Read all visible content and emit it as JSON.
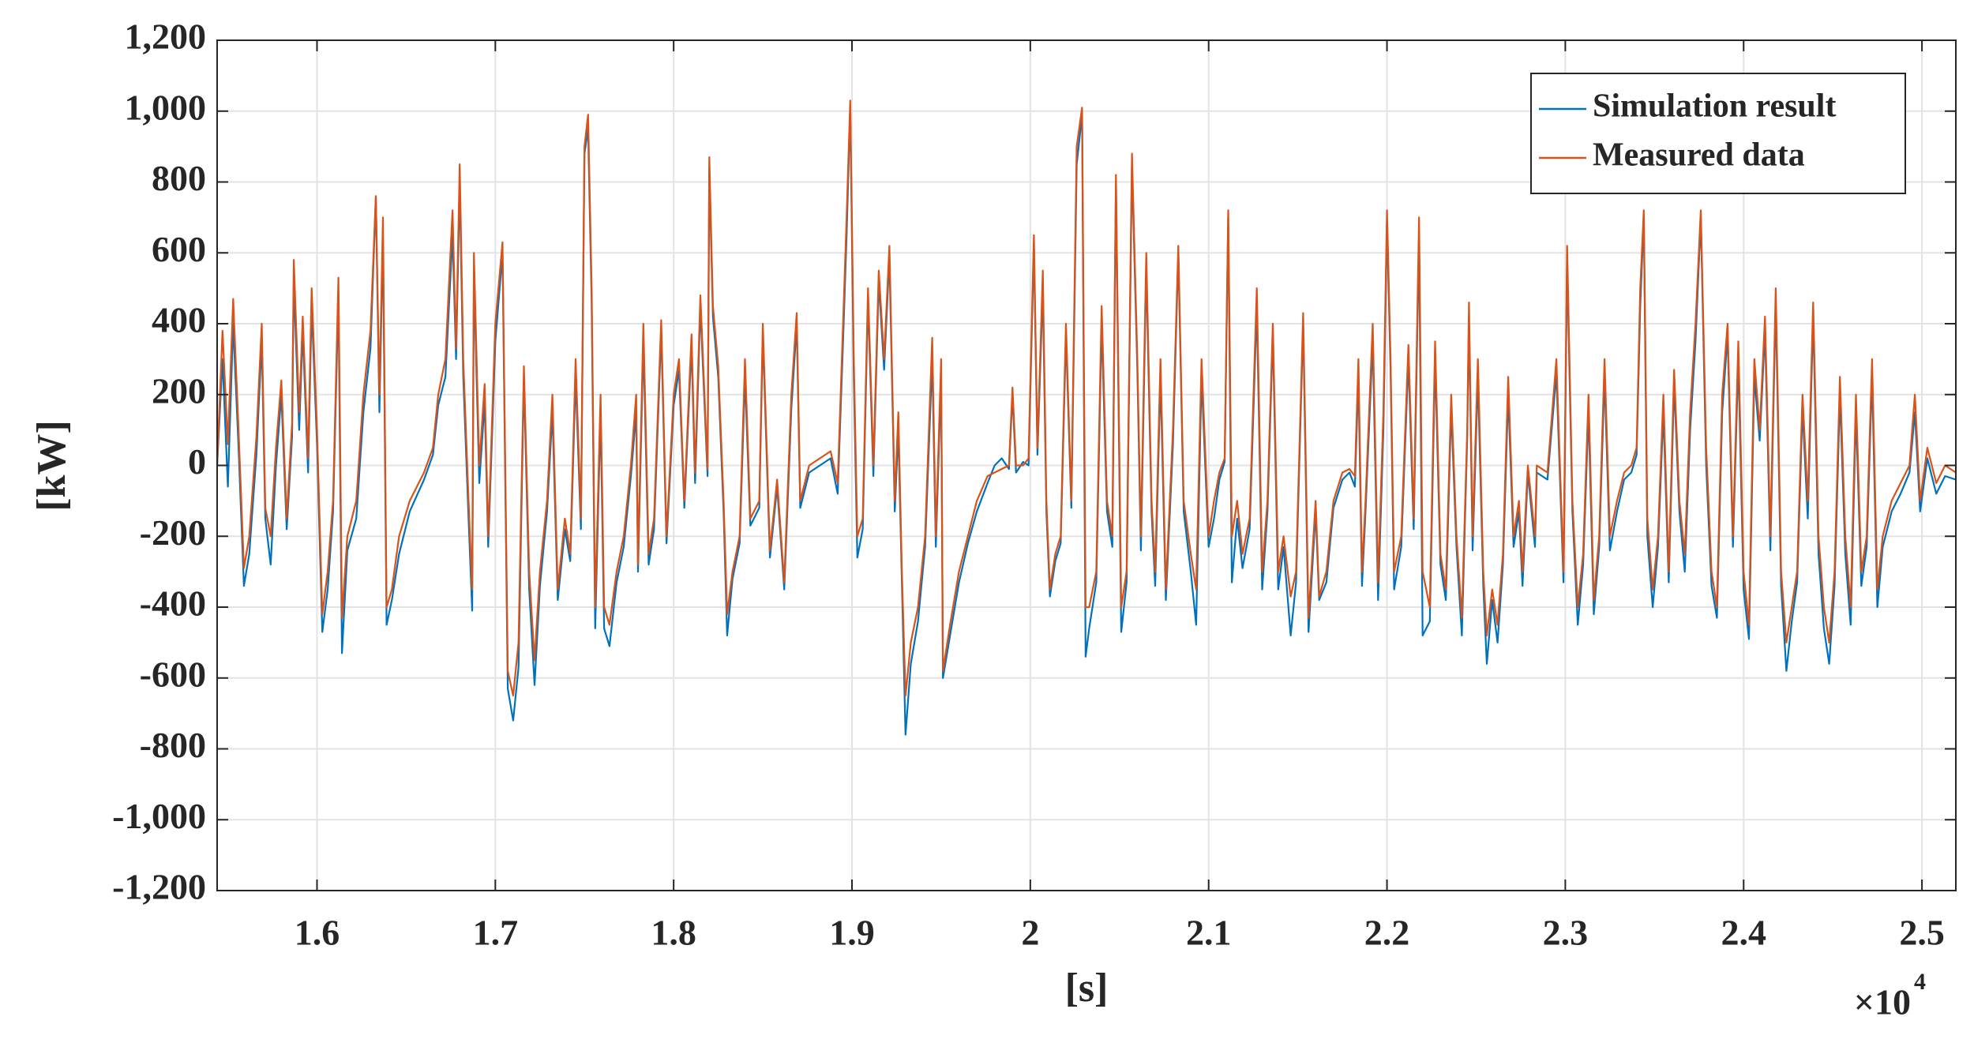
{
  "chart_data": {
    "type": "line",
    "xlabel": "[s]",
    "ylabel": "[kW]",
    "x_multiplier": "×10",
    "x_multiplier_exponent": "4",
    "xlim": [
      15440,
      25190
    ],
    "ylim": [
      -1200,
      1200
    ],
    "xticks": [
      {
        "value": 16000,
        "label": "1.6"
      },
      {
        "value": 17000,
        "label": "1.7"
      },
      {
        "value": 18000,
        "label": "1.8"
      },
      {
        "value": 19000,
        "label": "1.9"
      },
      {
        "value": 20000,
        "label": "2"
      },
      {
        "value": 21000,
        "label": "2.1"
      },
      {
        "value": 22000,
        "label": "2.2"
      },
      {
        "value": 23000,
        "label": "2.3"
      },
      {
        "value": 24000,
        "label": "2.4"
      },
      {
        "value": 25000,
        "label": "2.5"
      }
    ],
    "yticks": [
      {
        "value": -1200,
        "label": "-1,200"
      },
      {
        "value": -1000,
        "label": "-1,000"
      },
      -800,
      -600,
      -400,
      -200,
      0,
      200,
      400,
      600,
      800,
      {
        "value": 1000,
        "label": "1,000"
      },
      {
        "value": 1200,
        "label": "1,200"
      }
    ],
    "grid": true,
    "legend": "northeast",
    "x": [
      15440,
      15470,
      15500,
      15530,
      15560,
      15590,
      15620,
      15660,
      15690,
      15710,
      15740,
      15770,
      15800,
      15830,
      15860,
      15870,
      15900,
      15920,
      15950,
      15970,
      16000,
      16030,
      16060,
      16090,
      16120,
      16140,
      16170,
      16220,
      16260,
      16300,
      16330,
      16350,
      16370,
      16390,
      16420,
      16460,
      16520,
      16600,
      16650,
      16680,
      16720,
      16760,
      16780,
      16800,
      16820,
      16850,
      16870,
      16880,
      16910,
      16940,
      16960,
      17000,
      17040,
      17070,
      17100,
      17130,
      17160,
      17190,
      17220,
      17250,
      17290,
      17320,
      17350,
      17390,
      17420,
      17450,
      17480,
      17500,
      17520,
      17540,
      17560,
      17590,
      17610,
      17640,
      17680,
      17720,
      17760,
      17790,
      17800,
      17830,
      17860,
      17890,
      17930,
      17960,
      18000,
      18030,
      18060,
      18100,
      18120,
      18150,
      18190,
      18200,
      18220,
      18250,
      18280,
      18300,
      18330,
      18370,
      18400,
      18430,
      18480,
      18500,
      18540,
      18580,
      18620,
      18660,
      18690,
      18710,
      18760,
      18820,
      18880,
      18920,
      18950,
      18970,
      18990,
      19010,
      19030,
      19060,
      19090,
      19120,
      19150,
      19180,
      19210,
      19240,
      19260,
      19280,
      19300,
      19330,
      19370,
      19410,
      19450,
      19470,
      19500,
      19510,
      19550,
      19600,
      19650,
      19700,
      19760,
      19800,
      19840,
      19880,
      19900,
      19920,
      19960,
      19990,
      20020,
      20040,
      20070,
      20090,
      20110,
      20140,
      20170,
      20200,
      20230,
      20260,
      20290,
      20310,
      20330,
      20370,
      20400,
      20430,
      20460,
      20480,
      20510,
      20540,
      20570,
      20600,
      20620,
      20650,
      20680,
      20700,
      20730,
      20760,
      20800,
      20830,
      20860,
      20900,
      20930,
      20960,
      21000,
      21030,
      21060,
      21090,
      21110,
      21130,
      21160,
      21190,
      21230,
      21270,
      21300,
      21330,
      21360,
      21390,
      21420,
      21460,
      21490,
      21530,
      21560,
      21600,
      21620,
      21660,
      21700,
      21750,
      21790,
      21820,
      21840,
      21860,
      21880,
      21920,
      21950,
      21980,
      22000,
      22020,
      22040,
      22080,
      22120,
      22150,
      22180,
      22200,
      22240,
      22270,
      22300,
      22330,
      22360,
      22390,
      22420,
      22450,
      22460,
      22480,
      22510,
      22540,
      22560,
      22590,
      22620,
      22650,
      22680,
      22710,
      22740,
      22760,
      22790,
      22830,
      22840,
      22870,
      22900,
      22950,
      22990,
      23010,
      23040,
      23070,
      23100,
      23130,
      23160,
      23190,
      23220,
      23250,
      23290,
      23330,
      23370,
      23400,
      23420,
      23440,
      23460,
      23490,
      23520,
      23550,
      23580,
      23610,
      23640,
      23670,
      23700,
      23730,
      23760,
      23790,
      23820,
      23850,
      23880,
      23910,
      23940,
      23970,
      24000,
      24030,
      24060,
      24090,
      24120,
      24150,
      24180,
      24210,
      24240,
      24270,
      24300,
      24330,
      24360,
      24390,
      24420,
      24450,
      24480,
      24510,
      24540,
      24570,
      24600,
      24630,
      24660,
      24690,
      24720,
      24750,
      24780,
      24830,
      24880,
      24930,
      24960,
      24990,
      25030,
      25080,
      25130,
      25190
    ],
    "series": [
      {
        "name": "Simulation result",
        "color": "#0072bd",
        "values": [
          0,
          300,
          -60,
          400,
          50,
          -340,
          -250,
          30,
          350,
          -150,
          -280,
          0,
          200,
          -180,
          80,
          520,
          100,
          380,
          -20,
          450,
          60,
          -470,
          -350,
          -130,
          480,
          -530,
          -240,
          -150,
          150,
          330,
          760,
          150,
          650,
          -450,
          -380,
          -250,
          -130,
          -40,
          30,
          170,
          250,
          650,
          300,
          800,
          250,
          -150,
          -410,
          550,
          -50,
          180,
          -230,
          350,
          600,
          -630,
          -720,
          -570,
          250,
          -350,
          -620,
          -340,
          -130,
          150,
          -380,
          -180,
          -270,
          250,
          -180,
          880,
          950,
          460,
          -460,
          150,
          -460,
          -510,
          -330,
          -230,
          -30,
          150,
          -300,
          350,
          -280,
          -180,
          380,
          -220,
          170,
          270,
          -120,
          340,
          -50,
          450,
          -30,
          840,
          420,
          250,
          -130,
          -480,
          -320,
          -220,
          250,
          -170,
          -120,
          370,
          -260,
          -60,
          -350,
          160,
          400,
          -120,
          -20,
          0,
          20,
          -80,
          350,
          650,
          1010,
          250,
          -260,
          -180,
          470,
          -30,
          520,
          270,
          590,
          -130,
          100,
          -330,
          -760,
          -560,
          -440,
          -230,
          300,
          -230,
          250,
          -600,
          -480,
          -330,
          -220,
          -130,
          -50,
          0,
          20,
          -10,
          200,
          -20,
          10,
          0,
          620,
          30,
          500,
          -130,
          -370,
          -270,
          -220,
          370,
          -120,
          850,
          990,
          -540,
          -460,
          -330,
          400,
          -130,
          -230,
          800,
          -470,
          -330,
          850,
          270,
          -240,
          560,
          -130,
          -340,
          250,
          -380,
          60,
          600,
          -130,
          -300,
          -450,
          250,
          -230,
          -150,
          -40,
          10,
          700,
          -330,
          -150,
          -290,
          -180,
          450,
          -350,
          -130,
          370,
          -350,
          -230,
          -480,
          -330,
          400,
          -470,
          -130,
          -380,
          -330,
          -120,
          -40,
          -20,
          -60,
          250,
          -340,
          -130,
          350,
          -380,
          100,
          690,
          270,
          -350,
          -230,
          300,
          -180,
          650,
          -480,
          -440,
          300,
          -280,
          -380,
          160,
          -230,
          -480,
          80,
          420,
          -240,
          250,
          -340,
          -560,
          -380,
          -500,
          -280,
          200,
          -230,
          -130,
          -340,
          -20,
          -230,
          -20,
          -30,
          -40,
          260,
          -330,
          580,
          -130,
          -450,
          -280,
          150,
          -420,
          -230,
          250,
          -240,
          -130,
          -40,
          -20,
          30,
          450,
          700,
          -200,
          -400,
          -230,
          150,
          -330,
          230,
          -130,
          -300,
          100,
          350,
          700,
          0,
          -340,
          -430,
          150,
          370,
          -230,
          300,
          -350,
          -490,
          250,
          70,
          380,
          -240,
          460,
          -340,
          -580,
          -440,
          -330,
          160,
          -150,
          420,
          -250,
          -460,
          -560,
          -340,
          200,
          -250,
          -450,
          150,
          -340,
          -230,
          250,
          -400,
          -230,
          -130,
          -80,
          -20,
          150,
          -130,
          20,
          -80,
          -30,
          -40
        ]
      },
      {
        "name": "Measured data",
        "color": "#d95319",
        "values": [
          0,
          380,
          60,
          470,
          100,
          -290,
          -200,
          80,
          400,
          -120,
          -200,
          50,
          240,
          -150,
          120,
          580,
          150,
          420,
          20,
          500,
          100,
          -420,
          -300,
          -100,
          530,
          -430,
          -200,
          -100,
          200,
          380,
          760,
          200,
          700,
          -400,
          -350,
          -200,
          -100,
          -20,
          50,
          200,
          300,
          720,
          330,
          850,
          300,
          -100,
          -350,
          600,
          0,
          230,
          -200,
          400,
          630,
          -580,
          -650,
          -500,
          280,
          -300,
          -550,
          -300,
          -100,
          200,
          -350,
          -150,
          -250,
          300,
          -150,
          900,
          990,
          500,
          -400,
          200,
          -400,
          -450,
          -300,
          -200,
          0,
          200,
          -280,
          400,
          -250,
          -150,
          410,
          -200,
          200,
          300,
          -100,
          370,
          -20,
          480,
          -10,
          870,
          450,
          280,
          -100,
          -420,
          -300,
          -200,
          300,
          -150,
          -100,
          400,
          -240,
          -40,
          -330,
          200,
          430,
          -100,
          0,
          20,
          40,
          -50,
          400,
          700,
          1030,
          300,
          -200,
          -150,
          500,
          0,
          550,
          300,
          620,
          -100,
          150,
          -300,
          -650,
          -500,
          -400,
          -200,
          360,
          -200,
          300,
          -580,
          -450,
          -300,
          -200,
          -100,
          -30,
          -20,
          -10,
          0,
          220,
          0,
          0,
          20,
          650,
          50,
          550,
          -100,
          -350,
          -250,
          -200,
          400,
          -100,
          900,
          1010,
          -400,
          -400,
          -300,
          450,
          -100,
          -200,
          820,
          -400,
          -300,
          880,
          300,
          -200,
          600,
          -100,
          -300,
          300,
          -350,
          100,
          620,
          -100,
          -250,
          -350,
          300,
          -200,
          -100,
          -20,
          20,
          720,
          -200,
          -100,
          -250,
          -150,
          500,
          -300,
          -100,
          400,
          -300,
          -200,
          -370,
          -300,
          430,
          -430,
          -100,
          -370,
          -300,
          -100,
          -20,
          -10,
          -30,
          300,
          -300,
          -100,
          400,
          -330,
          150,
          720,
          300,
          -300,
          -200,
          340,
          -150,
          700,
          -300,
          -400,
          350,
          -250,
          -350,
          200,
          -200,
          -430,
          100,
          460,
          -200,
          300,
          -300,
          -480,
          -350,
          -450,
          -250,
          250,
          -200,
          -100,
          -300,
          0,
          -200,
          0,
          -10,
          -20,
          300,
          -300,
          620,
          -100,
          -400,
          -250,
          200,
          -380,
          -200,
          300,
          -200,
          -100,
          -20,
          0,
          50,
          500,
          720,
          -150,
          -350,
          -200,
          200,
          -300,
          270,
          -100,
          -250,
          150,
          400,
          720,
          50,
          -300,
          -400,
          200,
          400,
          -200,
          350,
          -300,
          -450,
          300,
          100,
          420,
          -200,
          500,
          -300,
          -500,
          -400,
          -300,
          200,
          -100,
          460,
          -200,
          -400,
          -500,
          -300,
          250,
          -200,
          -400,
          200,
          -300,
          -200,
          300,
          -350,
          -200,
          -100,
          -50,
          0,
          200,
          -100,
          50,
          -50,
          0,
          -20
        ]
      }
    ]
  }
}
